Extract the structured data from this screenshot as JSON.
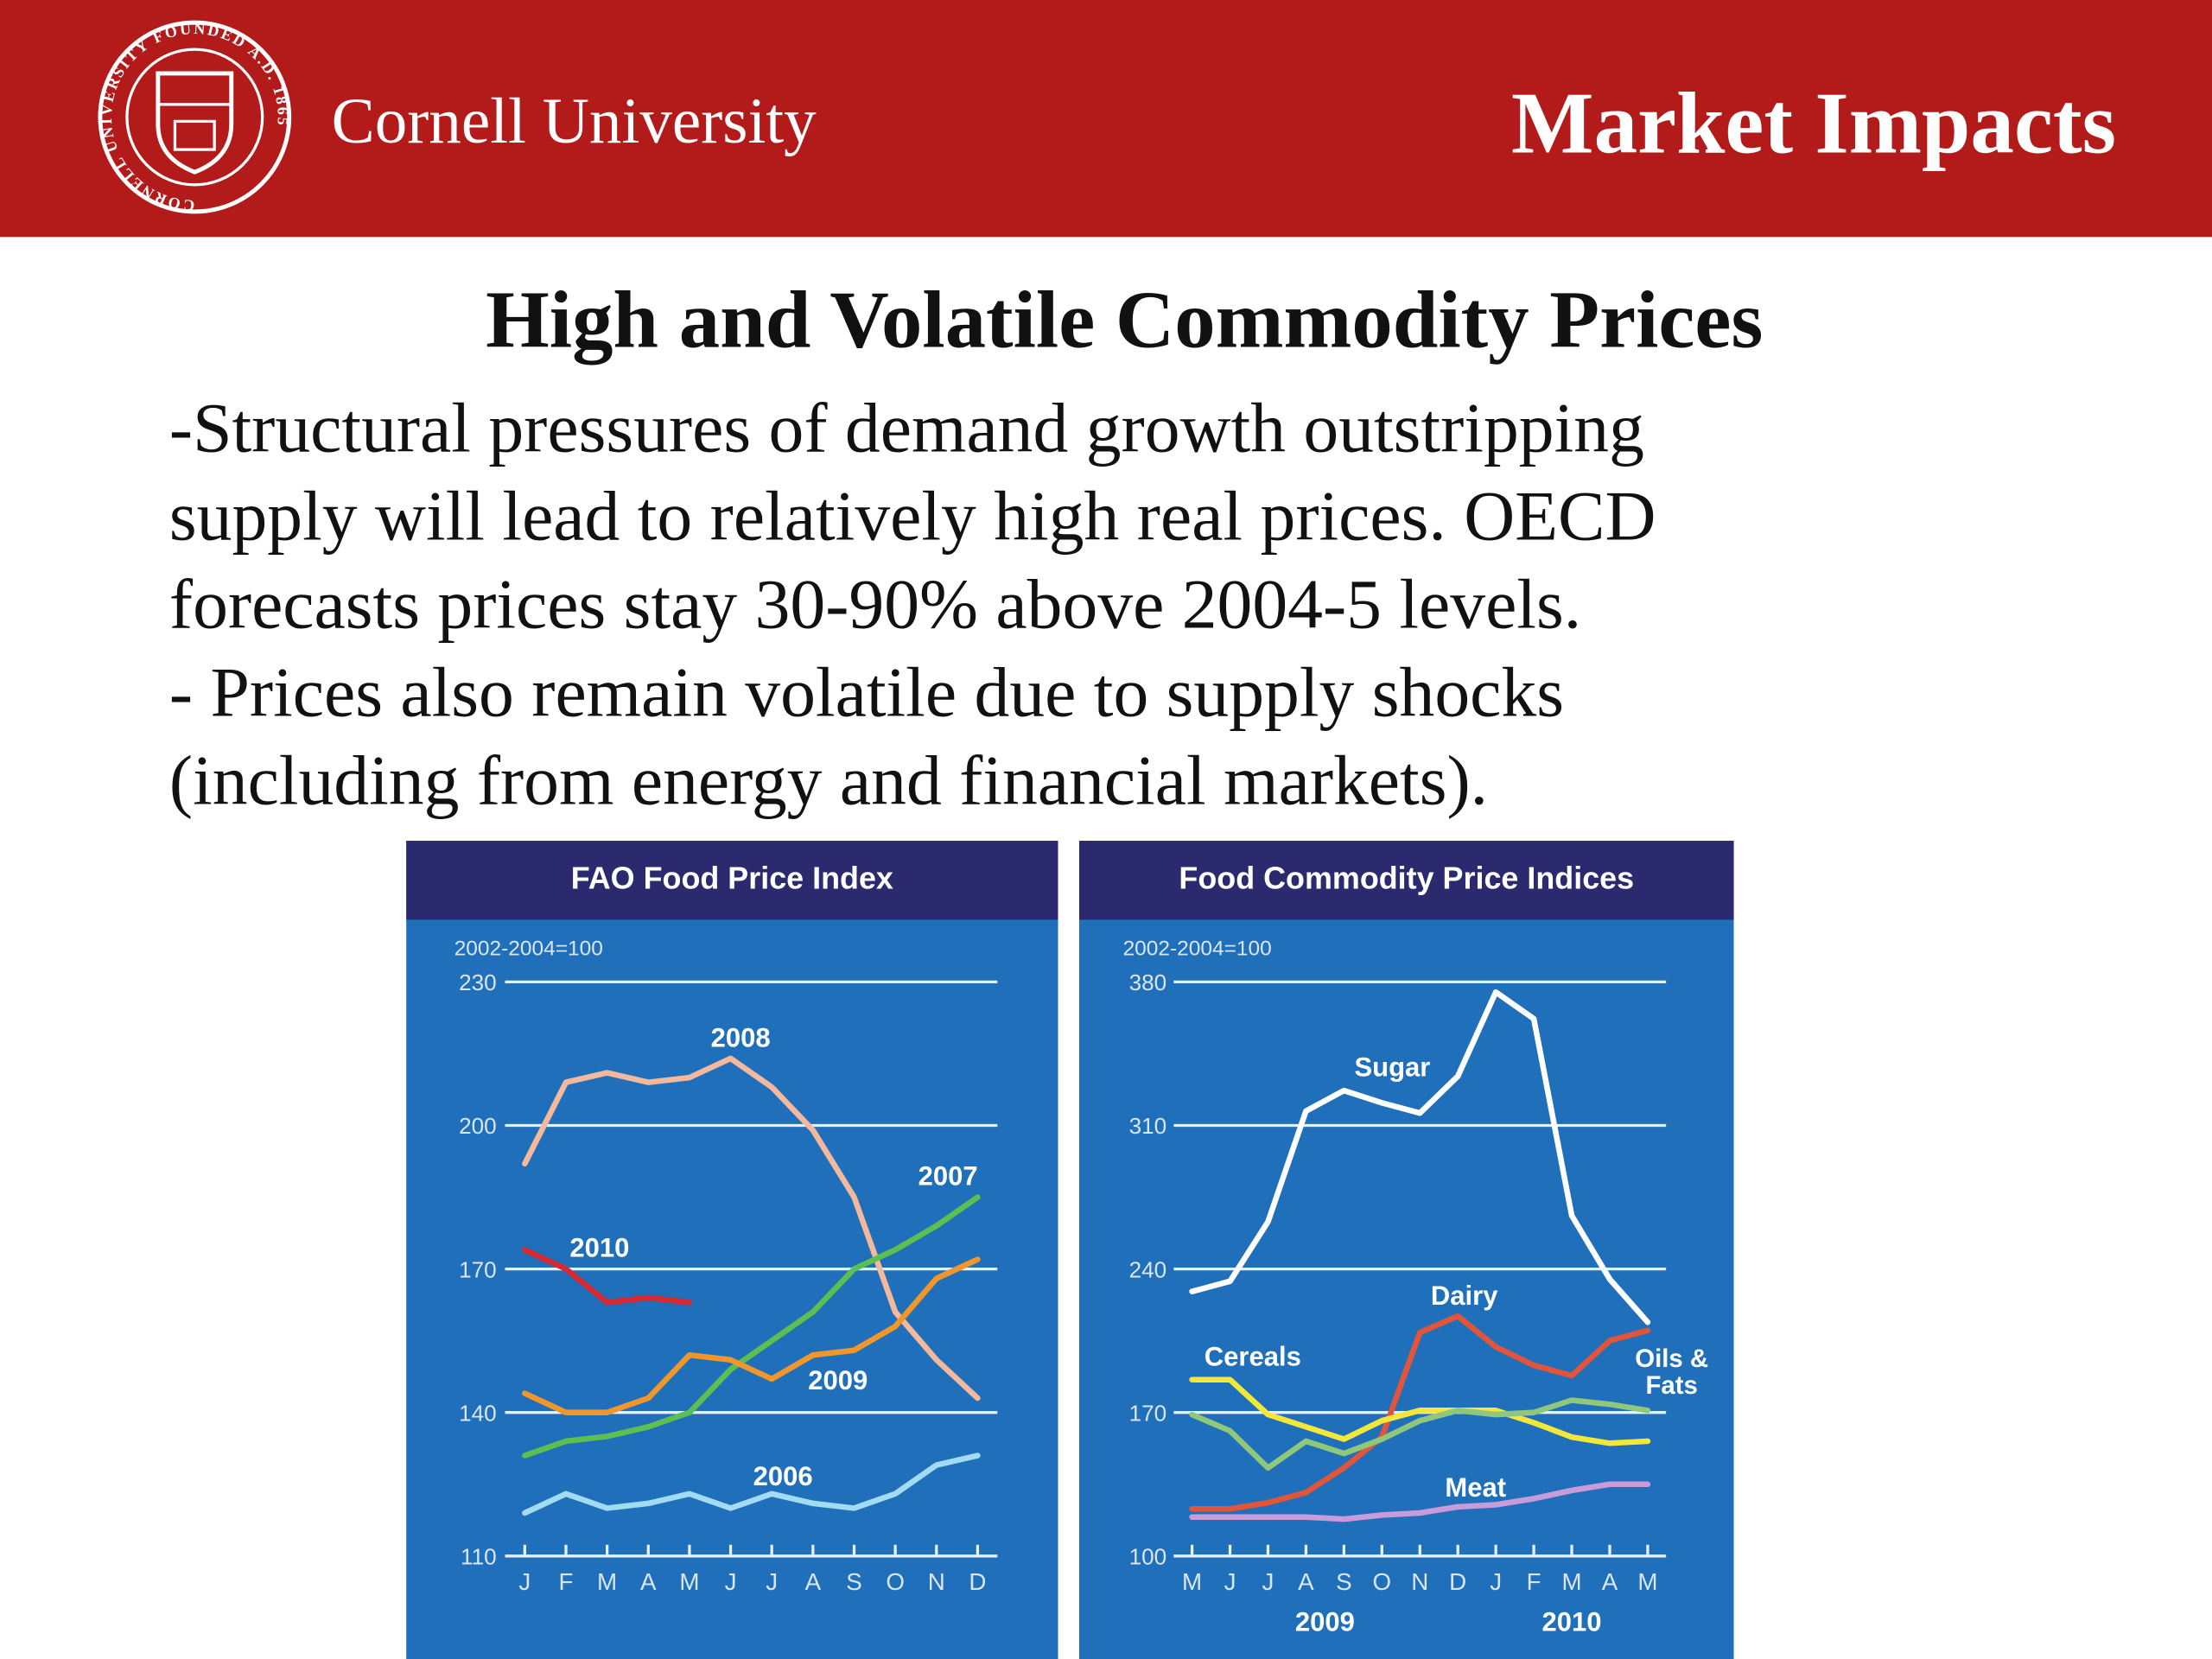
{
  "header": {
    "logo_text": "CORNELL UNIVERSITY FOUNDED A.D. 1865",
    "institution": "Cornell University",
    "title": "Market Impacts"
  },
  "slide": {
    "heading": "High and Volatile Commodity Prices",
    "body_lines": [
      "-Structural pressures of demand growth outstripping",
      "supply will lead to relatively high real prices. OECD",
      "forecasts prices stay 30-90% above 2004-5 levels.",
      "- Prices also remain volatile due to supply shocks",
      "(including from energy and financial markets)."
    ]
  },
  "chart_data": [
    {
      "type": "line",
      "title": "FAO Food Price Index",
      "y_label": "2002-2004=100",
      "categories": [
        "J",
        "F",
        "M",
        "A",
        "M",
        "J",
        "J",
        "A",
        "S",
        "O",
        "N",
        "D"
      ],
      "ylim": [
        110,
        230
      ],
      "yticks": [
        110,
        140,
        170,
        200,
        230
      ],
      "grid": true,
      "series": [
        {
          "name": "2008",
          "color": "#f4b99c",
          "values": [
            192,
            209,
            211,
            209,
            210,
            214,
            208,
            199,
            185,
            161,
            151,
            143
          ]
        },
        {
          "name": "2007",
          "color": "#5cbf4f",
          "values": [
            131,
            134,
            135,
            137,
            140,
            149,
            155,
            161,
            170,
            174,
            179,
            185
          ]
        },
        {
          "name": "2010",
          "color": "#d9282f",
          "values": [
            174,
            170,
            163,
            164,
            163,
            null,
            null,
            null,
            null,
            null,
            null,
            null
          ]
        },
        {
          "name": "2009",
          "color": "#f0962b",
          "values": [
            144,
            140,
            140,
            143,
            152,
            151,
            147,
            152,
            153,
            158,
            168,
            172
          ]
        },
        {
          "name": "2006",
          "color": "#a3dcf2",
          "values": [
            119,
            123,
            120,
            121,
            123,
            120,
            123,
            121,
            120,
            123,
            129,
            131
          ]
        }
      ]
    },
    {
      "type": "line",
      "title": "Food Commodity Price Indices",
      "y_label": "2002-2004=100",
      "categories": [
        "M",
        "J",
        "J",
        "A",
        "S",
        "O",
        "N",
        "D",
        "J",
        "F",
        "M",
        "A",
        "M"
      ],
      "x_groups": [
        "2009",
        "2010"
      ],
      "ylim": [
        100,
        380
      ],
      "yticks": [
        100,
        170,
        240,
        310,
        380
      ],
      "grid": true,
      "series": [
        {
          "name": "Sugar",
          "color": "#ffffff",
          "values": [
            229,
            234,
            263,
            317,
            327,
            321,
            316,
            334,
            375,
            362,
            266,
            235,
            214
          ]
        },
        {
          "name": "Dairy",
          "color": "#e2553a",
          "values": [
            123,
            123,
            126,
            131,
            143,
            158,
            209,
            217,
            202,
            193,
            188,
            205,
            210
          ]
        },
        {
          "name": "Cereals",
          "color": "#f3e83a",
          "values": [
            186,
            186,
            169,
            163,
            157,
            166,
            171,
            171,
            171,
            165,
            158,
            155,
            156
          ]
        },
        {
          "name": "Oils & Fats",
          "color": "#8fc87b",
          "values": [
            169,
            161,
            143,
            156,
            150,
            157,
            166,
            171,
            169,
            170,
            176,
            174,
            171
          ]
        },
        {
          "name": "Meat",
          "color": "#c99bd9",
          "values": [
            119,
            119,
            119,
            119,
            118,
            120,
            121,
            124,
            125,
            128,
            132,
            135,
            135
          ]
        }
      ]
    }
  ]
}
